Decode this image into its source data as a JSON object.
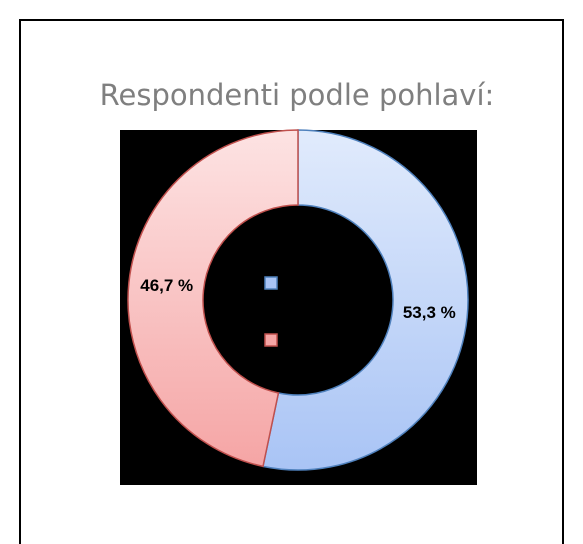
{
  "chart_data": {
    "type": "donut",
    "title": "Respondenti podle pohlaví:",
    "categories": [
      null,
      null
    ],
    "values": [
      53.3,
      46.7
    ],
    "value_labels": [
      "53,3 %",
      "46,7 %"
    ],
    "colors": [
      "#a9c4f5",
      "#f5a5a5"
    ],
    "legend": "center"
  }
}
